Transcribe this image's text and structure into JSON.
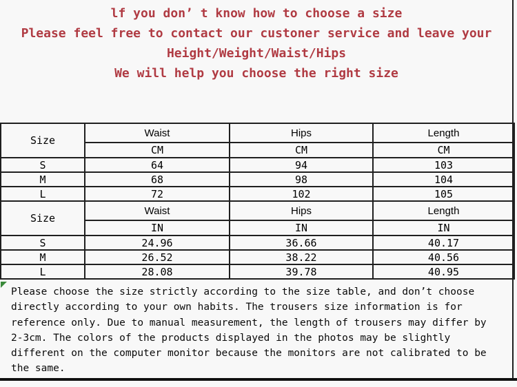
{
  "notice": {
    "color": "#b03b43",
    "lines": [
      "lf you don’ t know how to choose a size",
      "Please feel free to contact our custoner service and leave your",
      "Height/Weight/Waist/Hips",
      "We will help you choose the right size"
    ]
  },
  "size_table": {
    "corner_label": "Size",
    "columns": [
      "Waist",
      "Hips",
      "Length"
    ],
    "sections": [
      {
        "unit_label": "CM",
        "rows": [
          [
            "S",
            "64",
            "94",
            "103"
          ],
          [
            "M",
            "68",
            "98",
            "104"
          ],
          [
            "L",
            "72",
            "102",
            "105"
          ]
        ]
      },
      {
        "unit_label": "IN",
        "rows": [
          [
            "S",
            "24.96",
            "36.66",
            "40.17"
          ],
          [
            "M",
            "26.52",
            "38.22",
            "40.56"
          ],
          [
            "L",
            "28.08",
            "39.78",
            "40.95"
          ]
        ]
      }
    ]
  },
  "disclaimer": {
    "lines": [
      "Please choose the size strictly according to the size table, and don’t choose",
      "directly according to your own habits. The trousers size information is for",
      "reference only. Due to manual measurement, the length of trousers may differ by",
      "2-3cm. The colors of the products displayed in the photos may be slightly",
      "different on the computer monitor because the monitors are not calibrated to be",
      "the same."
    ]
  }
}
